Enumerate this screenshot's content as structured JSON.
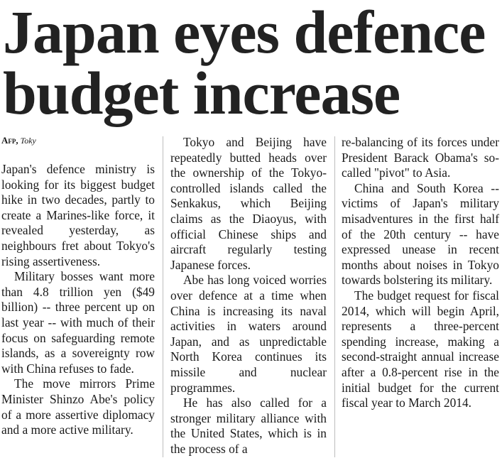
{
  "headline": {
    "line1": "Japan eyes defence",
    "line2": "budget increase"
  },
  "byline": {
    "agency": "Afp,",
    "place": "Toky"
  },
  "columns": [
    {
      "paragraphs": [
        "Japan's defence ministry is looking for its biggest budget hike in two decades, partly to create a Marines-like force, it revealed yesterday, as neighbours fret about Tokyo's rising assertiveness.",
        "Military bosses want more than 4.8 trillion yen ($49 billion) -- three percent up on last year -- with much of their focus on safeguarding remote islands, as a sovereignty row with China refuses to fade.",
        "The move mirrors Prime Minister Shinzo Abe's policy of a more assertive diplomacy and a more active military."
      ]
    },
    {
      "paragraphs": [
        "Tokyo and Beijing have repeatedly butted heads over the ownership of the Tokyo-controlled islands called the Senkakus, which Beijing claims as the Diaoyus, with official Chinese ships and aircraft regularly testing Japanese forces.",
        "Abe has long voiced worries over defence at a time when China is increasing its naval activities in waters around Japan, and as unpredictable North Korea continues its missile and nuclear programmes.",
        "He has also called for a stronger military alliance with the United States, which is in the process of a"
      ]
    },
    {
      "paragraphs": [
        "re-balancing of its forces under President Barack Obama's so-called \"pivot\" to Asia.",
        "China and South Korea -- victims of Japan's military misadventures in the first half of the 20th century -- have expressed unease in recent months about noises in Tokyo towards bolstering its military.",
        "The budget request for fiscal 2014, which will begin April, represents a three-percent spending increase, making a second-straight annual increase after a 0.8-percent rise in the initial budget for the current fiscal year to March 2014."
      ]
    }
  ]
}
